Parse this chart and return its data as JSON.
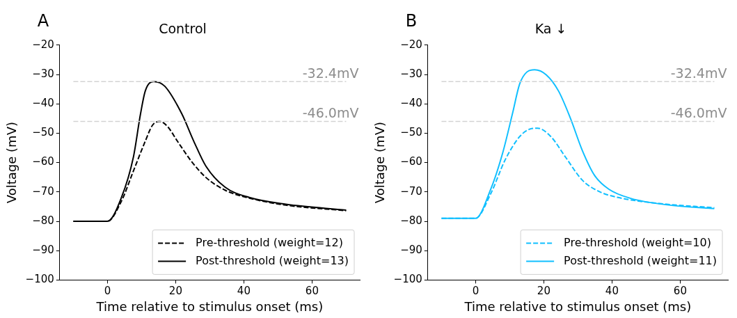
{
  "chart_data": [
    {
      "type": "line",
      "title": "Control",
      "xlabel": "Time relative to stimulus onset (ms)",
      "ylabel": "Voltage (mV)",
      "annotations": [
        "A"
      ],
      "xlim": [
        -14,
        74
      ],
      "xticks": [
        0,
        20,
        40,
        60
      ],
      "ylim": [
        -100,
        -20
      ],
      "yticks": [
        {
          "value": -100,
          "label": "−100"
        },
        {
          "value": -90,
          "label": "−90"
        },
        {
          "value": -80,
          "label": "−80"
        },
        {
          "value": -70,
          "label": "−70"
        },
        {
          "value": -60,
          "label": "−60"
        },
        {
          "value": -50,
          "label": "−50"
        },
        {
          "value": -40,
          "label": "−40"
        },
        {
          "value": -30,
          "label": "−30"
        },
        {
          "value": -20,
          "label": "−20"
        }
      ],
      "legend": "bottom right",
      "ref_lines": [
        {
          "axis": "y",
          "value": -32.4,
          "label": "-32.4mV",
          "color": "#d3d3d3",
          "line_style": "dashed"
        },
        {
          "axis": "y",
          "value": -46.0,
          "label": "-46.0mV",
          "color": "#d3d3d3",
          "line_style": "dashed"
        }
      ],
      "series": [
        {
          "name": "Pre-threshold (weight=12)",
          "color": "#000000",
          "line_style": "dashed",
          "x": [
            -10,
            0,
            4.0,
            7.6,
            11.1,
            13.2,
            15.3,
            17.6,
            20.5,
            24.7,
            28.9,
            34.5,
            41.6,
            52.3,
            70
          ],
          "values": [
            -80,
            -80,
            -73.4,
            -62.9,
            -52.7,
            -47.3,
            -46.0,
            -47.7,
            -52.7,
            -59.7,
            -65.1,
            -69.4,
            -72.1,
            -74.5,
            -76.4
          ]
        },
        {
          "name": "Post-threshold (weight=13)",
          "color": "#000000",
          "line_style": "solid",
          "x": [
            -10,
            0,
            4.0,
            7.6,
            9.7,
            11.1,
            13.6,
            16.8,
            21.8,
            25.3,
            28.9,
            34.5,
            41.6,
            52.3,
            70
          ],
          "values": [
            -80,
            -80,
            -72.2,
            -58.2,
            -43.4,
            -35.6,
            -32.4,
            -34.0,
            -43.4,
            -52.7,
            -61.3,
            -68.4,
            -71.9,
            -74.2,
            -76.2
          ]
        }
      ]
    },
    {
      "type": "line",
      "title": "Ka ↓",
      "xlabel": "Time relative to stimulus onset (ms)",
      "ylabel": "Voltage (mV)",
      "annotations": [
        "B"
      ],
      "xlim": [
        -14,
        74
      ],
      "xticks": [
        0,
        20,
        40,
        60
      ],
      "ylim": [
        -100,
        -20
      ],
      "yticks": [
        {
          "value": -100,
          "label": "−100"
        },
        {
          "value": -90,
          "label": "−90"
        },
        {
          "value": -80,
          "label": "−80"
        },
        {
          "value": -70,
          "label": "−70"
        },
        {
          "value": -60,
          "label": "−60"
        },
        {
          "value": -50,
          "label": "−50"
        },
        {
          "value": -40,
          "label": "−40"
        },
        {
          "value": -30,
          "label": "−30"
        },
        {
          "value": -20,
          "label": "−20"
        }
      ],
      "legend": "bottom right",
      "ref_lines": [
        {
          "axis": "y",
          "value": -32.4,
          "label": "-32.4mV",
          "color": "#d3d3d3",
          "line_style": "dashed"
        },
        {
          "axis": "y",
          "value": -46.0,
          "label": "-46.0mV",
          "color": "#d3d3d3",
          "line_style": "dashed"
        }
      ],
      "series": [
        {
          "name": "Pre-threshold (weight=10)",
          "color": "#10bfff",
          "line_style": "dashed",
          "x": [
            -10,
            0,
            4.4,
            8.7,
            12.9,
            15.7,
            18.2,
            22.1,
            26.4,
            31.3,
            36.3,
            41.8,
            52.6,
            70
          ],
          "values": [
            -79,
            -79,
            -70.7,
            -59.0,
            -51.2,
            -48.7,
            -48.3,
            -51.2,
            -58.2,
            -66.0,
            -69.9,
            -71.9,
            -73.8,
            -75.4
          ]
        },
        {
          "name": "Post-threshold (weight=11)",
          "color": "#10bfff",
          "line_style": "solid",
          "x": [
            -10,
            0,
            4.4,
            7.9,
            10.8,
            12.9,
            15.0,
            17.3,
            20.7,
            24.3,
            27.8,
            31.3,
            34.9,
            39.1,
            45.5,
            56.2,
            70
          ],
          "values": [
            -79,
            -79,
            -69.2,
            -56.9,
            -43.4,
            -33.3,
            -29.2,
            -28.4,
            -30.1,
            -35.6,
            -44.9,
            -55.9,
            -64.4,
            -69.1,
            -72.2,
            -74.4,
            -75.7
          ]
        }
      ]
    }
  ]
}
